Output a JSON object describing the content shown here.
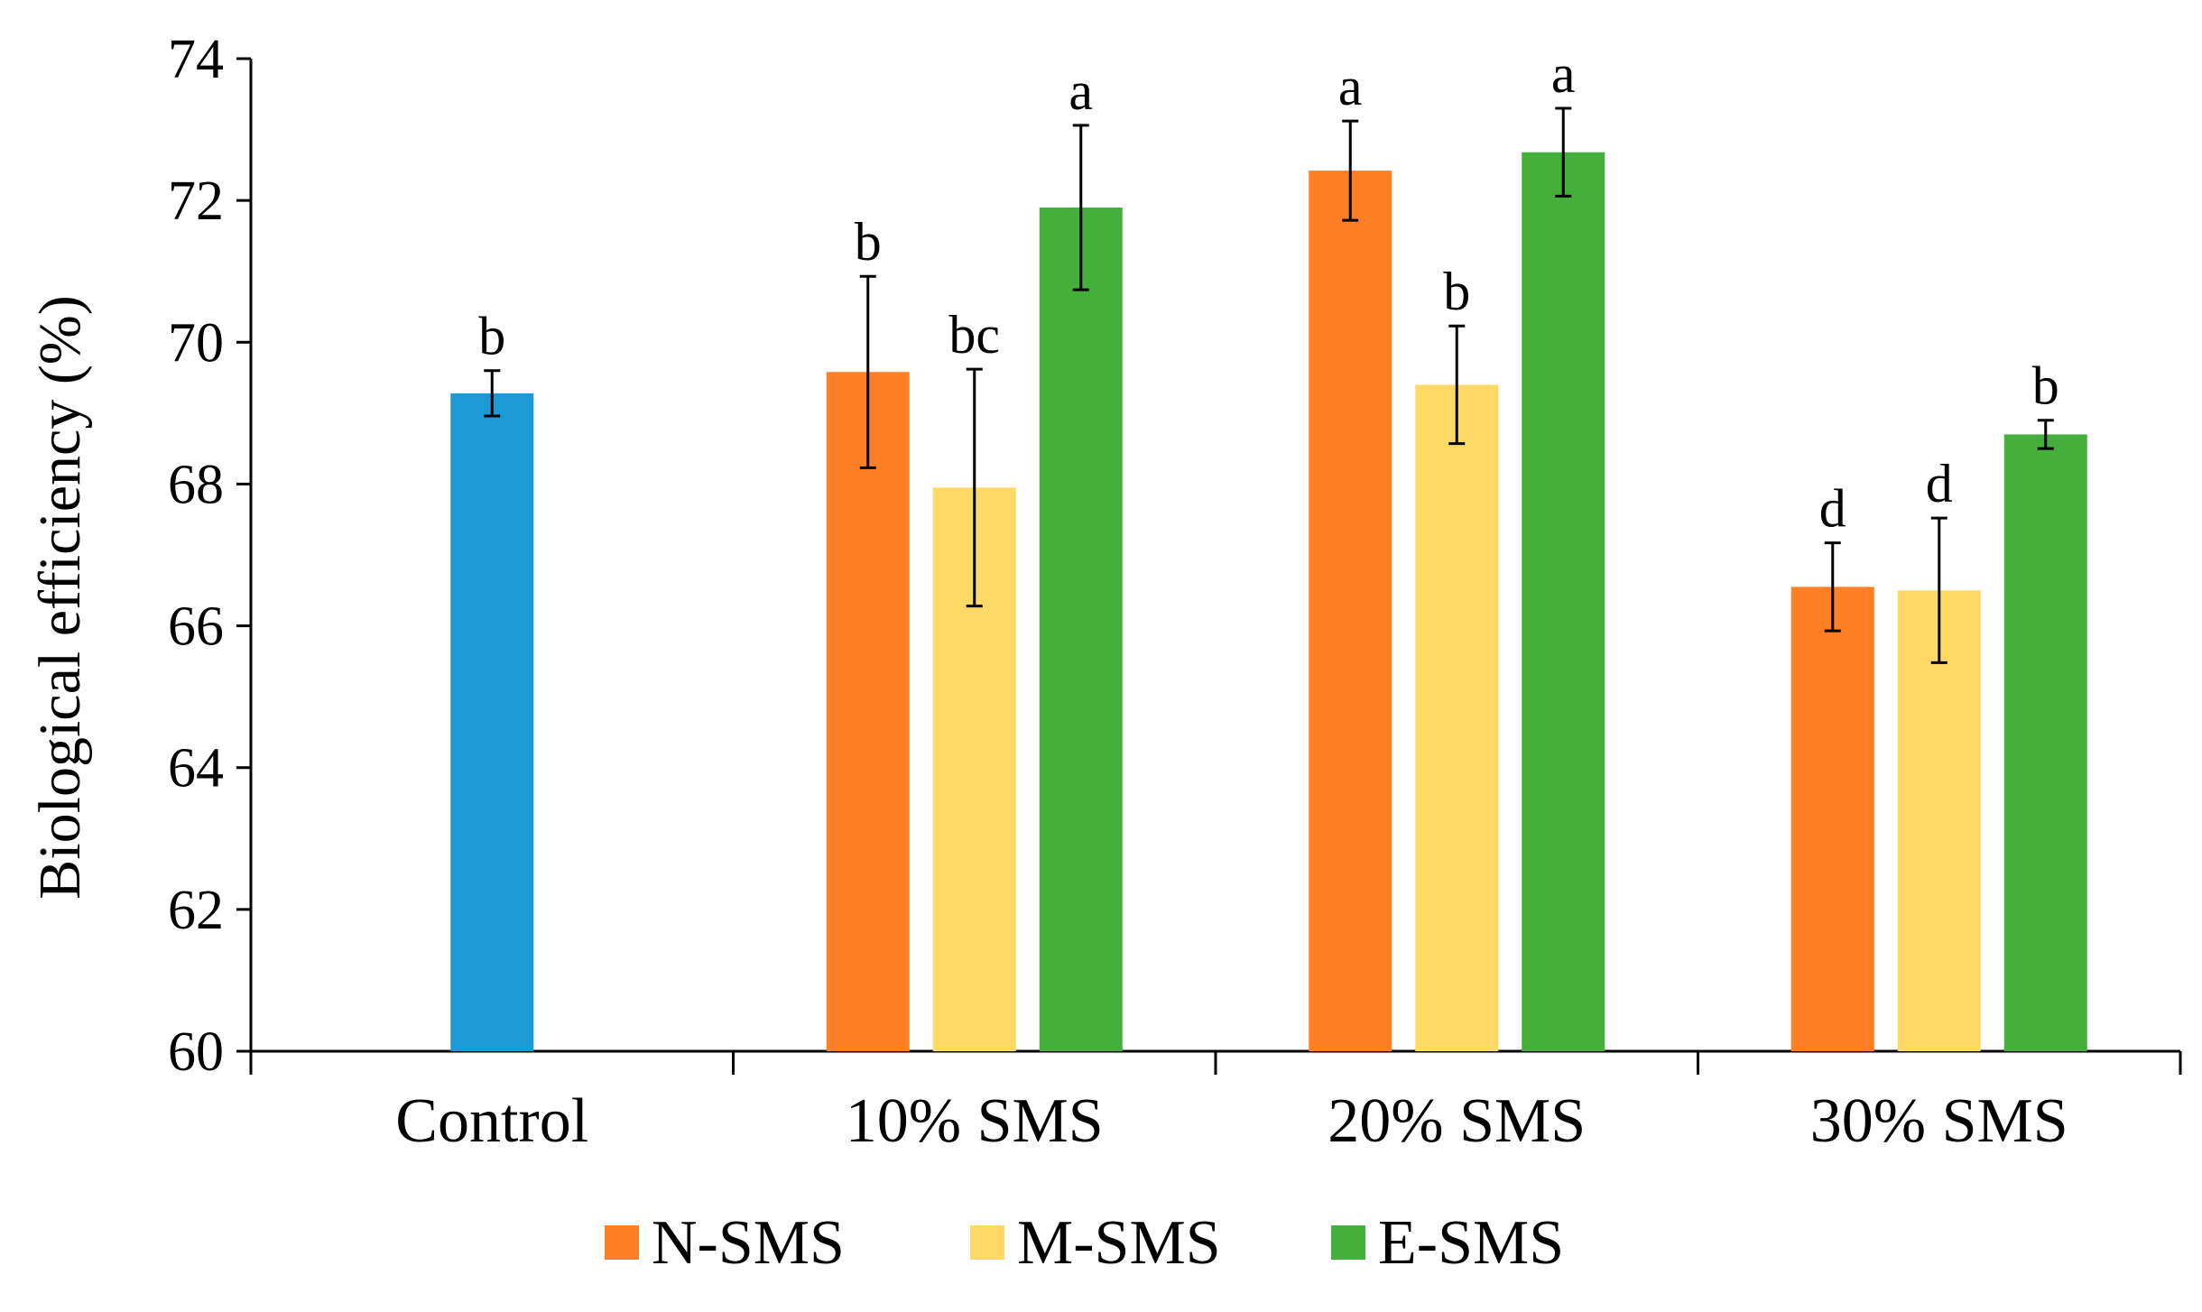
{
  "chart_data": {
    "type": "bar",
    "title": "",
    "xlabel": "",
    "ylabel": "Biological efficiency (%)",
    "ylim": [
      60,
      74
    ],
    "yticks": [
      "60",
      "62",
      "64",
      "66",
      "68",
      "70",
      "72",
      "74"
    ],
    "grid": false,
    "legend_position": "bottom",
    "categories": [
      "Control",
      "10% SMS",
      "20% SMS",
      "30% SMS"
    ],
    "control": {
      "name": "Control",
      "color": "#1C9AD6",
      "value": 69.28,
      "error": 0.32,
      "significance": "b"
    },
    "series": [
      {
        "name": "N-SMS",
        "color": "#FF7F27",
        "values": [
          null,
          69.58,
          72.42,
          66.55
        ],
        "errors": [
          null,
          1.35,
          0.7,
          0.62
        ],
        "significance": [
          "",
          "b",
          "a",
          "d"
        ]
      },
      {
        "name": "M-SMS",
        "color": "#FFD966",
        "values": [
          null,
          67.95,
          69.4,
          66.5
        ],
        "errors": [
          null,
          1.67,
          0.83,
          1.02
        ],
        "significance": [
          "",
          "bc",
          "b",
          "d"
        ]
      },
      {
        "name": "E-SMS",
        "color": "#44AF3A",
        "values": [
          null,
          71.9,
          72.68,
          68.7
        ],
        "errors": [
          null,
          1.16,
          0.62,
          0.2
        ],
        "significance": [
          "",
          "a",
          "a",
          "b"
        ]
      }
    ]
  }
}
